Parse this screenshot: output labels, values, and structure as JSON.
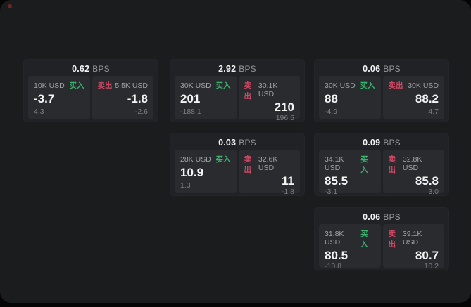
{
  "labels": {
    "buy": "买入",
    "sell": "卖出",
    "bps_unit": "BPS"
  },
  "colors": {
    "buy_green": "#35b56f",
    "sell_red": "#cf4a66",
    "status_dot": "#6e2523",
    "frame_bg": "#1b1c1d",
    "card_bg": "#212225",
    "panel_bg": "#2a2b2e"
  },
  "cards": [
    {
      "bps": "0.62",
      "buy": {
        "amount": "10K USD",
        "price": "-3.7",
        "change": "4.3"
      },
      "sell": {
        "amount": "5.5K USD",
        "price": "-1.8",
        "change": "-2.6"
      }
    },
    {
      "bps": "2.92",
      "buy": {
        "amount": "30K USD",
        "price": "201",
        "change": "-188.1"
      },
      "sell": {
        "amount": "30.1K USD",
        "price": "210",
        "change": "196.5"
      }
    },
    {
      "bps": "0.06",
      "buy": {
        "amount": "30K USD",
        "price": "88",
        "change": "-4.9"
      },
      "sell": {
        "amount": "30K USD",
        "price": "88.2",
        "change": "4.7"
      }
    },
    {
      "bps": "0.03",
      "buy": {
        "amount": "28K USD",
        "price": "10.9",
        "change": "1.3"
      },
      "sell": {
        "amount": "32.6K USD",
        "price": "11",
        "change": "-1.8"
      }
    },
    {
      "bps": "0.09",
      "buy": {
        "amount": "34.1K USD",
        "price": "85.5",
        "change": "-3.1"
      },
      "sell": {
        "amount": "32.8K USD",
        "price": "85.8",
        "change": "3.0"
      }
    },
    {
      "bps": "0.06",
      "buy": {
        "amount": "31.8K USD",
        "price": "80.5",
        "change": "-10.8"
      },
      "sell": {
        "amount": "39.1K USD",
        "price": "80.7",
        "change": "10.2"
      }
    }
  ]
}
